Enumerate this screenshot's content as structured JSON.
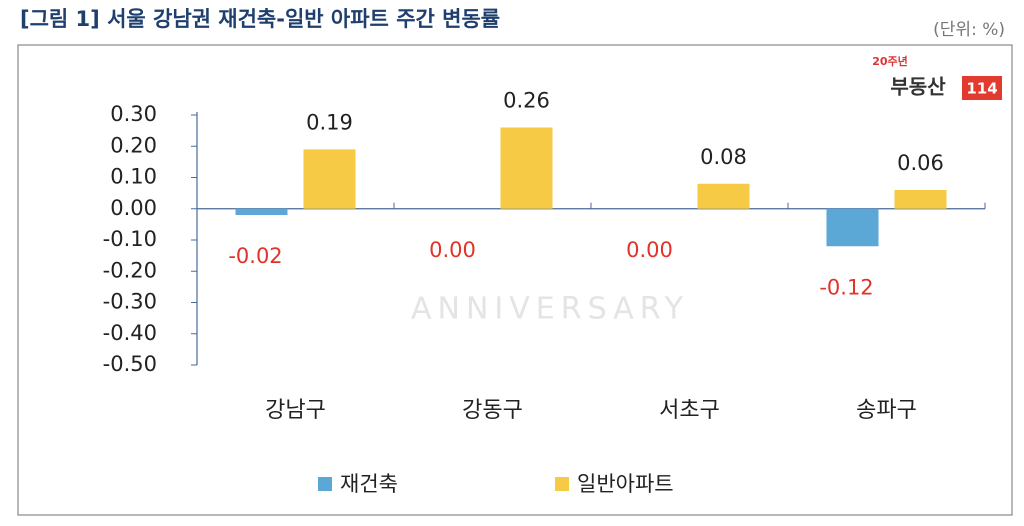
{
  "chart_data": {
    "type": "bar",
    "title": "[그림 1] 서울 강남권 재건축-일반 아파트 주간 변동률",
    "unit": "(단위: %)",
    "logo": {
      "badge": "20주년",
      "name": "부동산",
      "number": "114"
    },
    "watermark": "ANNIVERSARY",
    "categories": [
      "강남구",
      "강동구",
      "서초구",
      "송파구"
    ],
    "series": [
      {
        "name": "재건축",
        "color": "#5ba7d6",
        "label_color": "#e0342a",
        "values": [
          -0.02,
          0,
          0,
          -0.12
        ],
        "value_labels": [
          "-0.02",
          "0.00",
          "0.00",
          "-0.12"
        ]
      },
      {
        "name": "일반아파트",
        "color": "#f7ca45",
        "label_color": "#222222",
        "values": [
          0.19,
          0.26,
          0.08,
          0.06
        ]
      }
    ],
    "ylim": [
      -0.5,
      0.3
    ],
    "yticks": [
      {
        "value": 0.3,
        "label": "0.30"
      },
      {
        "value": 0.2,
        "label": "0.20"
      },
      {
        "value": 0.1,
        "label": "0.10"
      },
      {
        "value": 0,
        "label": "0.00"
      },
      {
        "value": -0.1,
        "label": "-0.10"
      },
      {
        "value": -0.2,
        "label": "-0.20"
      },
      {
        "value": -0.3,
        "label": "-0.30"
      },
      {
        "value": -0.4,
        "label": "-0.40"
      },
      {
        "value": -0.5,
        "label": "-0.50"
      }
    ]
  }
}
